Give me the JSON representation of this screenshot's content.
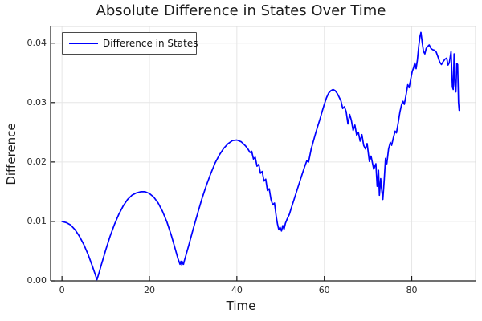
{
  "chart": {
    "title": "Absolute Difference in States Over Time",
    "xlabel": "Time",
    "ylabel": "Difference",
    "legend_label": "Difference in States",
    "colors": {
      "line": "#0000ff",
      "grid": "#e6e6e6",
      "frame_light": "#d9d9d9",
      "axis": "#1a1a1a",
      "text": "#1c1c1c"
    }
  },
  "chart_data": {
    "type": "line",
    "title": "Absolute Difference in States Over Time",
    "xlabel": "Time",
    "ylabel": "Difference",
    "xlim": [
      -2.6,
      94.6
    ],
    "ylim": [
      0,
      0.0428
    ],
    "xticks": [
      0,
      20,
      40,
      60,
      80
    ],
    "xtick_labels": [
      "0",
      "20",
      "40",
      "60",
      "80"
    ],
    "yticks": [
      0,
      0.01,
      0.02,
      0.03,
      0.04
    ],
    "ytick_labels": [
      "0.00",
      "0.01",
      "0.02",
      "0.03",
      "0.04"
    ],
    "grid": true,
    "legend_position": "top-left",
    "series": [
      {
        "name": "Difference in States",
        "color": "#0000ff",
        "x": [
          0,
          1,
          2,
          3,
          4,
          5,
          6,
          7,
          7.5,
          8,
          8.5,
          9,
          10,
          11,
          12,
          13,
          14,
          15,
          16,
          17,
          18,
          19,
          20,
          21,
          22,
          23,
          24,
          25,
          26,
          26.5,
          27,
          27.2,
          27.4,
          27.6,
          27.8,
          28,
          29,
          30,
          31,
          32,
          33,
          34,
          35,
          36,
          37,
          38,
          39,
          40,
          41,
          42,
          42.6,
          43,
          43.4,
          43.8,
          44.2,
          44.6,
          45,
          45.4,
          45.8,
          46.2,
          46.6,
          47,
          47.4,
          47.8,
          48.2,
          48.6,
          49,
          49.3,
          49.6,
          49.9,
          50.2,
          50.5,
          50.8,
          51.1,
          51.5,
          52,
          52.5,
          53,
          54,
          55,
          55.5,
          56,
          56.4,
          57,
          58,
          58.5,
          59,
          59.5,
          60,
          60.5,
          61,
          61.5,
          62,
          62.5,
          63,
          63.4,
          63.8,
          64.2,
          64.6,
          65,
          65.4,
          65.8,
          66.2,
          66.6,
          67,
          67.4,
          67.8,
          68.2,
          68.6,
          69,
          69.4,
          69.8,
          70.3,
          70.7,
          71.3,
          71.8,
          72.1,
          72.4,
          72.6,
          72.9,
          73.1,
          73.4,
          73.7,
          74,
          74.3,
          74.7,
          75.1,
          75.4,
          75.8,
          76.2,
          76.5,
          76.9,
          77.3,
          77.7,
          78,
          78.3,
          78.7,
          79.1,
          79.4,
          79.8,
          80.1,
          80.4,
          80.7,
          81,
          81.3,
          81.6,
          81.9,
          82.1,
          82.4,
          82.7,
          83,
          83.3,
          83.6,
          84,
          84.4,
          84.8,
          85.2,
          85.6,
          86,
          86.4,
          86.8,
          87.2,
          87.6,
          88,
          88.3,
          88.6,
          89,
          89.3,
          89.5,
          89.7,
          89.9,
          90.1,
          90.3,
          90.5,
          90.7,
          90.85
        ],
        "y": [
          0.01,
          0.0098,
          0.0094,
          0.0086,
          0.0075,
          0.0061,
          0.0044,
          0.0024,
          0.0013,
          0.0002,
          0.0014,
          0.0027,
          0.0052,
          0.0075,
          0.0095,
          0.0112,
          0.0126,
          0.0137,
          0.0144,
          0.0148,
          0.015,
          0.015,
          0.0147,
          0.0141,
          0.0131,
          0.0117,
          0.0099,
          0.0077,
          0.0051,
          0.0038,
          0.0028,
          0.0033,
          0.0027,
          0.0032,
          0.0028,
          0.0034,
          0.006,
          0.0087,
          0.0113,
          0.0138,
          0.016,
          0.018,
          0.0198,
          0.0212,
          0.0223,
          0.0231,
          0.0236,
          0.0237,
          0.0234,
          0.0227,
          0.0221,
          0.0216,
          0.0218,
          0.0205,
          0.0208,
          0.0193,
          0.0196,
          0.0181,
          0.0184,
          0.0168,
          0.0171,
          0.0152,
          0.0155,
          0.0137,
          0.0128,
          0.0131,
          0.0109,
          0.0095,
          0.0086,
          0.009,
          0.0084,
          0.0093,
          0.0087,
          0.0097,
          0.0104,
          0.0112,
          0.0124,
          0.0135,
          0.0158,
          0.0181,
          0.0192,
          0.0202,
          0.02,
          0.0222,
          0.0248,
          0.026,
          0.0272,
          0.0285,
          0.0297,
          0.0308,
          0.0316,
          0.032,
          0.0322,
          0.032,
          0.0315,
          0.0309,
          0.0303,
          0.029,
          0.0293,
          0.0285,
          0.0264,
          0.028,
          0.027,
          0.0253,
          0.0262,
          0.0245,
          0.025,
          0.0235,
          0.0246,
          0.0228,
          0.0222,
          0.0231,
          0.0201,
          0.021,
          0.0188,
          0.0197,
          0.0159,
          0.0186,
          0.0144,
          0.0172,
          0.0155,
          0.0137,
          0.017,
          0.0206,
          0.0197,
          0.0222,
          0.0233,
          0.0228,
          0.0241,
          0.0252,
          0.0249,
          0.0266,
          0.0284,
          0.0297,
          0.0302,
          0.0297,
          0.0313,
          0.033,
          0.0325,
          0.0341,
          0.0352,
          0.0358,
          0.0367,
          0.0357,
          0.0372,
          0.0394,
          0.0412,
          0.0418,
          0.0401,
          0.0386,
          0.0382,
          0.0391,
          0.0394,
          0.0397,
          0.0391,
          0.0389,
          0.0388,
          0.0385,
          0.0377,
          0.0368,
          0.0364,
          0.0369,
          0.0373,
          0.0375,
          0.0363,
          0.0367,
          0.0386,
          0.0326,
          0.0322,
          0.0382,
          0.033,
          0.0318,
          0.0366,
          0.0364,
          0.03,
          0.0287
        ]
      }
    ]
  }
}
